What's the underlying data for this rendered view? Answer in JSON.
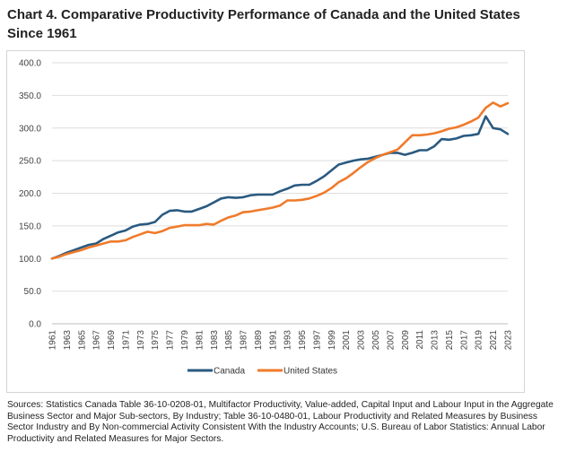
{
  "title": "Chart 4. Comparative Productivity Performance of Canada and the United States Since 1961",
  "source_note": "Sources: Statistics Canada Table 36-10-0208-01, Multifactor Productivity, Value-added, Capital Input and Labour Input in the Aggregate Business Sector and Major Sub-sectors, By Industry; Table 36-10-0480-01, Labour Productivity and Related Measures by Business Sector Industry and By Non-commercial Activity Consistent With the Industry Accounts; U.S. Bureau of Labor Statistics: Annual Labor Productivity and Related Measures for Major Sectors.",
  "chart_data": {
    "type": "line",
    "title": "Chart 4. Comparative Productivity Performance of Canada and the United States Since 1961",
    "xlabel": "",
    "ylabel": "",
    "ylim": [
      0,
      400
    ],
    "yticks": [
      "0.0",
      "50.0",
      "100.0",
      "150.0",
      "200.0",
      "250.0",
      "300.0",
      "350.0",
      "400.0"
    ],
    "xticks": [
      "1961",
      "1963",
      "1965",
      "1967",
      "1969",
      "1971",
      "1973",
      "1975",
      "1977",
      "1979",
      "1981",
      "1983",
      "1985",
      "1987",
      "1989",
      "1991",
      "1993",
      "1995",
      "1997",
      "1999",
      "2001",
      "2003",
      "2005",
      "2007",
      "2009",
      "2011",
      "2013",
      "2015",
      "2017",
      "2019",
      "2021",
      "2023"
    ],
    "x": [
      1961,
      1962,
      1963,
      1964,
      1965,
      1966,
      1967,
      1968,
      1969,
      1970,
      1971,
      1972,
      1973,
      1974,
      1975,
      1976,
      1977,
      1978,
      1979,
      1980,
      1981,
      1982,
      1983,
      1984,
      1985,
      1986,
      1987,
      1988,
      1989,
      1990,
      1991,
      1992,
      1993,
      1994,
      1995,
      1996,
      1997,
      1998,
      1999,
      2000,
      2001,
      2002,
      2003,
      2004,
      2005,
      2006,
      2007,
      2008,
      2009,
      2010,
      2011,
      2012,
      2013,
      2014,
      2015,
      2016,
      2017,
      2018,
      2019,
      2020,
      2021,
      2022,
      2023
    ],
    "grid": true,
    "legend_position": "bottom-center",
    "series": [
      {
        "name": "Canada",
        "color": "#2a5a80",
        "values": [
          100,
          104,
          109,
          113,
          117,
          121,
          123,
          130,
          135,
          140,
          143,
          149,
          152,
          153,
          156,
          167,
          173,
          174,
          172,
          172,
          176,
          180,
          186,
          192,
          194,
          193,
          194,
          197,
          198,
          198,
          198,
          203,
          207,
          212,
          213,
          213,
          219,
          226,
          235,
          244,
          247,
          250,
          252,
          253,
          256,
          259,
          262,
          262,
          259,
          262,
          266,
          266,
          272,
          283,
          282,
          284,
          288,
          289,
          291,
          318,
          300,
          298,
          291
        ]
      },
      {
        "name": "United States",
        "color": "#f07a2a",
        "values": [
          100,
          103,
          107,
          110,
          113,
          117,
          120,
          123,
          126,
          126,
          128,
          133,
          137,
          141,
          139,
          142,
          147,
          149,
          151,
          151,
          151,
          153,
          152,
          158,
          163,
          166,
          171,
          172,
          174,
          176,
          178,
          181,
          189,
          189,
          190,
          192,
          196,
          201,
          208,
          217,
          223,
          231,
          240,
          248,
          254,
          259,
          263,
          267,
          278,
          289,
          289,
          290,
          292,
          295,
          299,
          301,
          305,
          310,
          316,
          331,
          339,
          333,
          338
        ]
      }
    ]
  }
}
